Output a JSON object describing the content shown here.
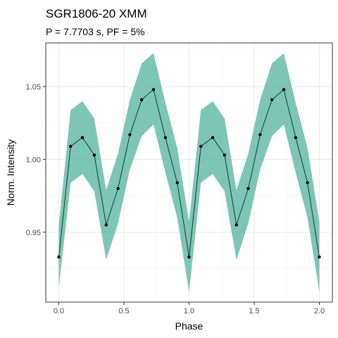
{
  "chart_data": {
    "type": "line",
    "title": "SGR1806-20 XMM",
    "subtitle": "P = 7.7703 s, PF = 5%",
    "xlabel": "Phase",
    "ylabel": "Norm. Intensity",
    "xlim": [
      -0.1,
      2.1
    ],
    "ylim": [
      0.902,
      1.08
    ],
    "xticks": [
      0.0,
      0.5,
      1.0,
      1.5,
      2.0
    ],
    "xtick_labels": [
      "0.0",
      "0.5",
      "1.0",
      "1.5",
      "2.0"
    ],
    "yticks": [
      0.95,
      1.0,
      1.05
    ],
    "ytick_labels": [
      "0.95",
      "1.00",
      "1.05"
    ],
    "grid": true,
    "line_color": "#0b3b2e",
    "band_color": "#5db8a4",
    "x": [
      0.0,
      0.0909,
      0.1818,
      0.2727,
      0.3636,
      0.4545,
      0.5455,
      0.6364,
      0.7273,
      0.8182,
      0.9091,
      1.0,
      1.0909,
      1.1818,
      1.2727,
      1.3636,
      1.4545,
      1.5455,
      1.6364,
      1.7273,
      1.8182,
      1.9091,
      2.0
    ],
    "y": [
      0.933,
      1.009,
      1.015,
      1.003,
      0.955,
      0.98,
      1.017,
      1.041,
      1.048,
      1.015,
      0.984,
      0.933,
      1.009,
      1.015,
      1.003,
      0.955,
      0.98,
      1.017,
      1.041,
      1.048,
      1.015,
      0.984,
      0.933
    ],
    "y_lower": [
      0.912,
      0.984,
      0.99,
      0.978,
      0.931,
      0.956,
      0.993,
      1.016,
      1.024,
      0.991,
      0.96,
      0.909,
      0.984,
      0.99,
      0.978,
      0.931,
      0.956,
      0.993,
      1.016,
      1.024,
      0.991,
      0.96,
      0.909
    ],
    "y_upper": [
      0.955,
      1.034,
      1.04,
      1.028,
      0.979,
      1.004,
      1.041,
      1.066,
      1.073,
      1.039,
      1.008,
      0.957,
      1.034,
      1.04,
      1.028,
      0.979,
      1.004,
      1.041,
      1.066,
      1.073,
      1.039,
      1.008,
      0.957
    ]
  }
}
